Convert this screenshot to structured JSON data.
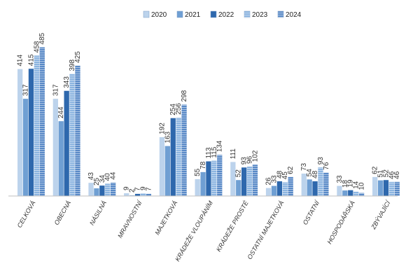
{
  "chart_data": {
    "type": "bar",
    "title": "",
    "xlabel": "",
    "ylabel": "",
    "ylim": [
      0,
      500
    ],
    "grid": false,
    "legend_position": "top-right",
    "categories": [
      "CELKOVÁ",
      "OBECNÁ",
      "NÁSILNÁ",
      "MRAVNOSTNÍ",
      "MAJETKOVÁ",
      "KRÁDEŽE VLOUPÁNÍM",
      "KRÁDEŽE PROSTÉ",
      "OSTATNÍ MAJETKOVÁ",
      "OSTATNÍ",
      "HOSPODÁŘSKÁ",
      "ZBÝVAJÍCÍ"
    ],
    "series": [
      {
        "name": "2020",
        "color": "#bcd3ec",
        "values": [
          414,
          317,
          43,
          9,
          192,
          55,
          111,
          26,
          73,
          33,
          62
        ]
      },
      {
        "name": "2021",
        "color": "#6f9fd3",
        "values": [
          317,
          244,
          25,
          2,
          163,
          78,
          52,
          33,
          54,
          18,
          51
        ]
      },
      {
        "name": "2022",
        "color": "#2e68ad",
        "values": [
          415,
          343,
          34,
          7,
          254,
          113,
          93,
          48,
          48,
          19,
          52
        ]
      },
      {
        "name": "2023",
        "color": "#84b0de",
        "values": [
          458,
          398,
          40,
          9,
          256,
          115,
          96,
          45,
          93,
          14,
          46
        ]
      },
      {
        "name": "2024",
        "color": "#4f82c3",
        "values": [
          485,
          425,
          44,
          7,
          298,
          134,
          102,
          62,
          76,
          10,
          46
        ]
      }
    ]
  }
}
